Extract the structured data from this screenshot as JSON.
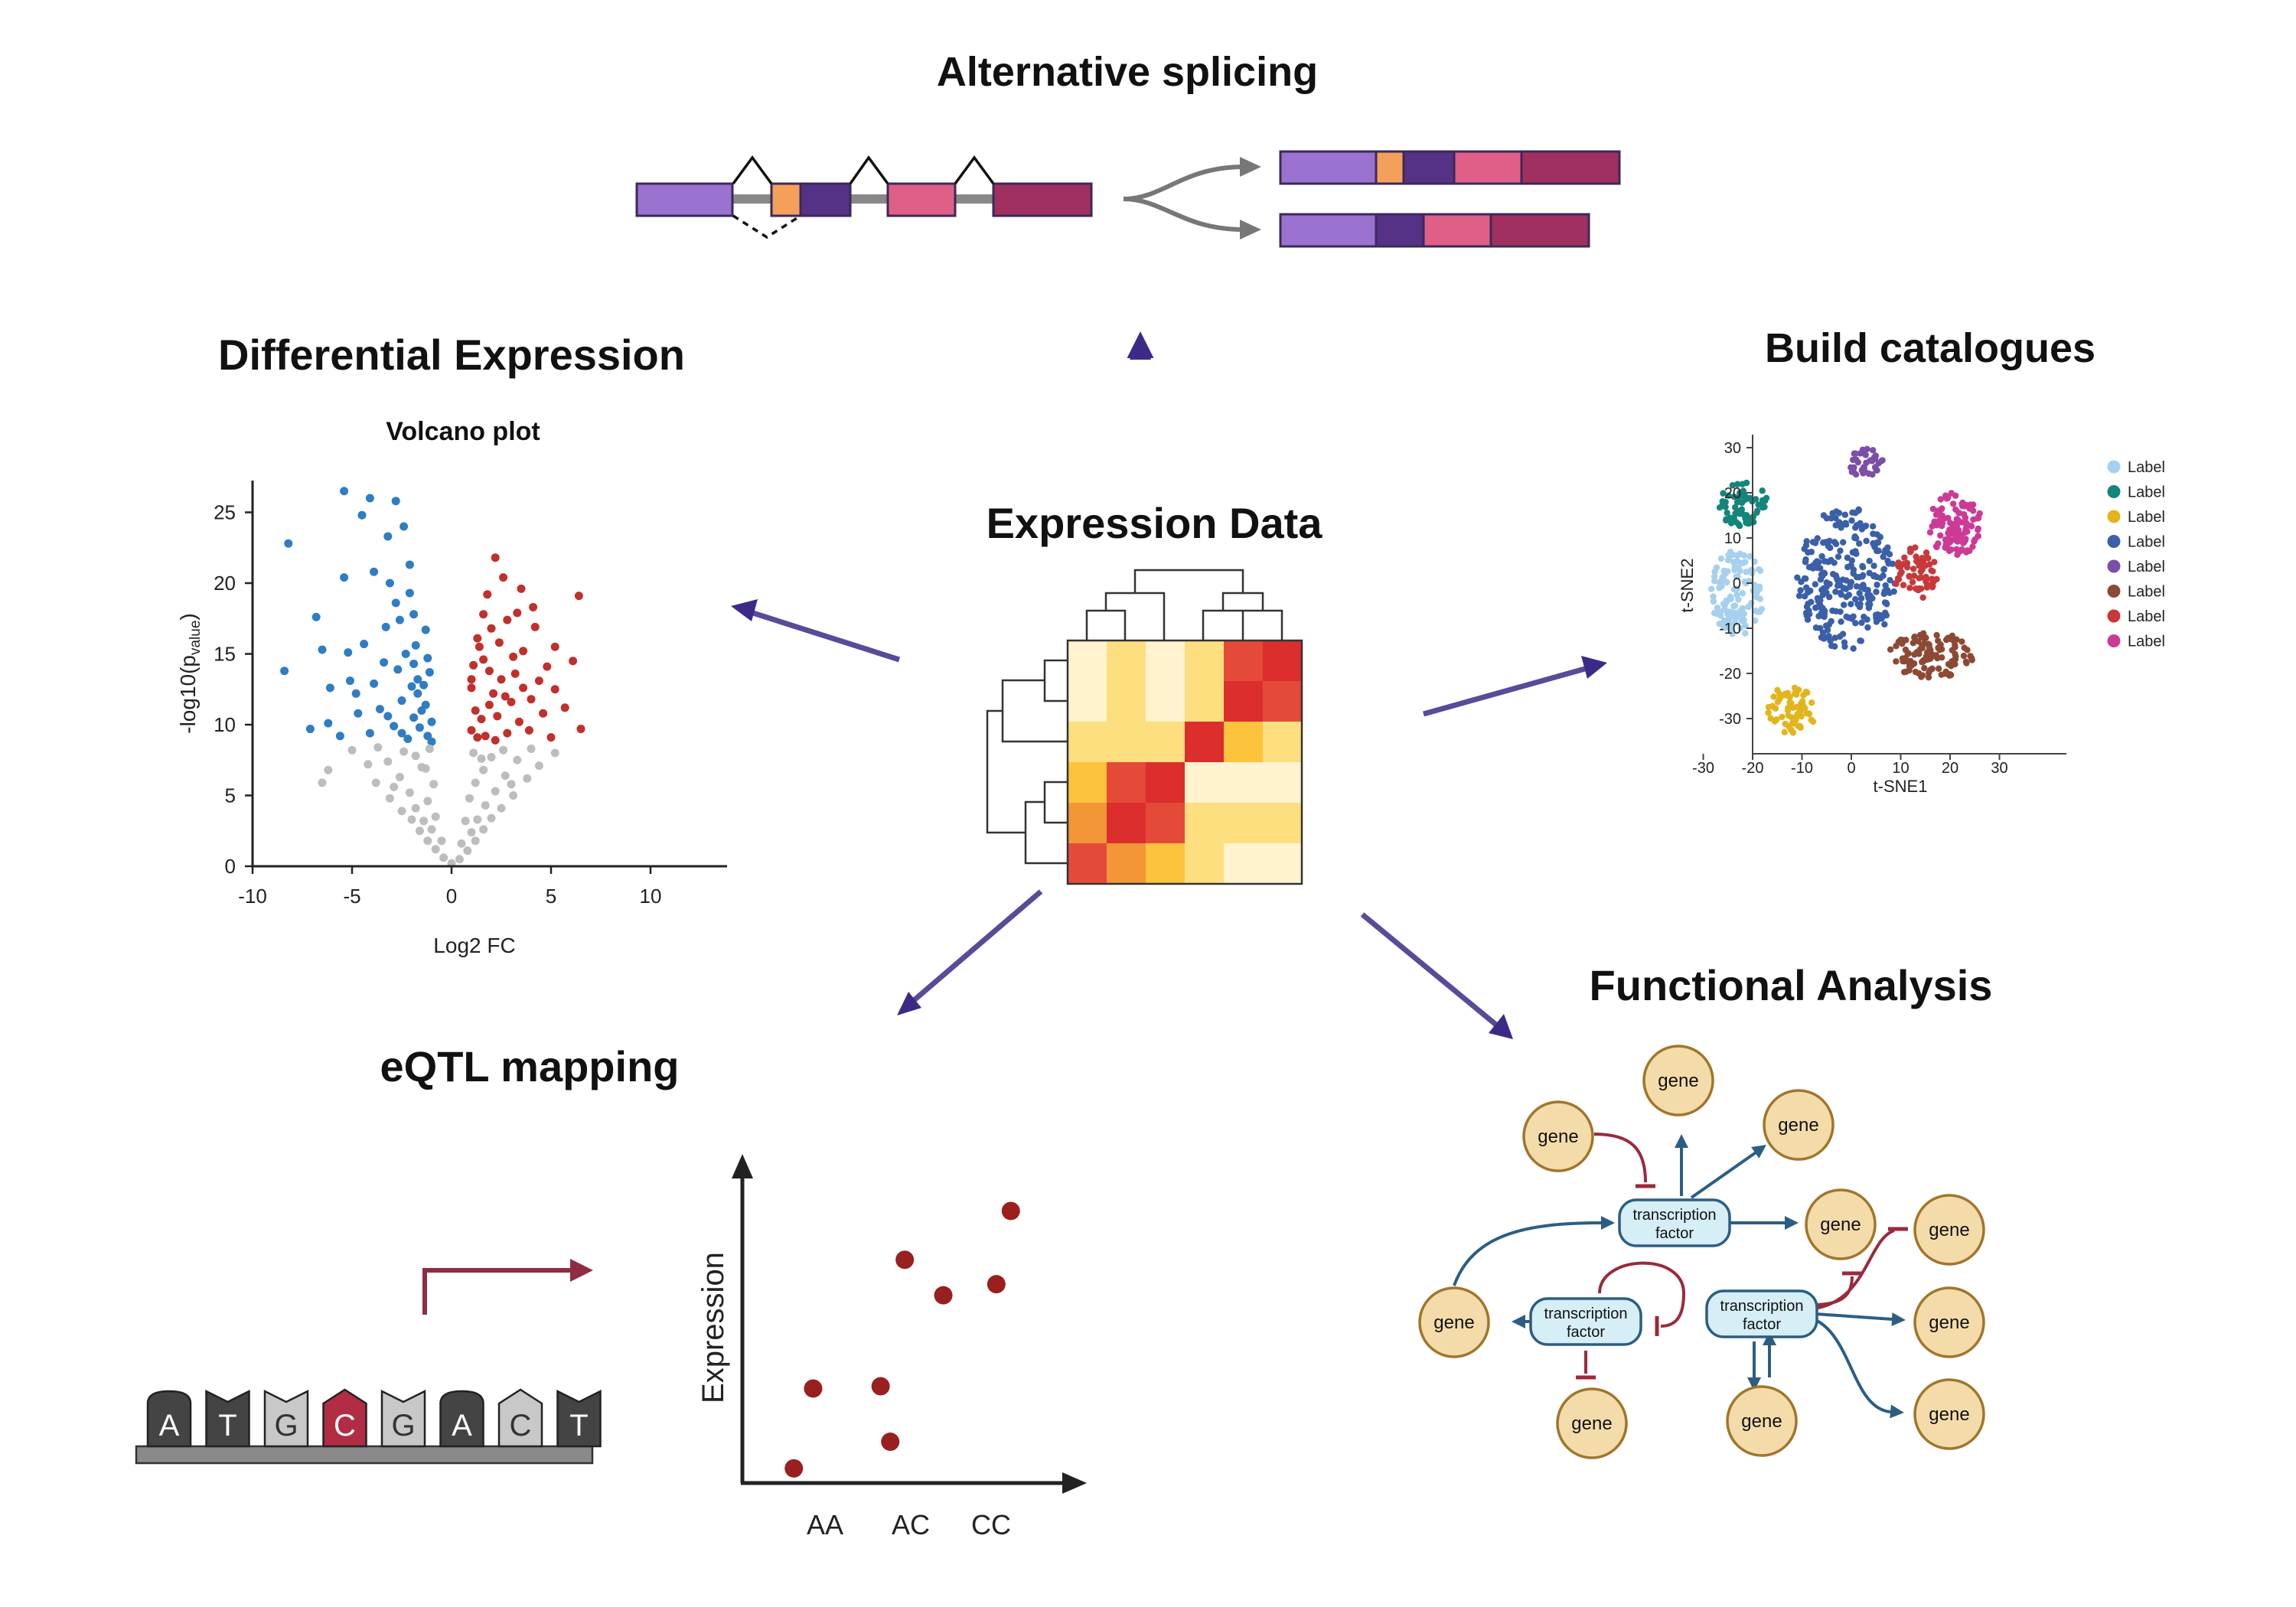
{
  "titles": {
    "alternative_splicing": "Alternative splicing",
    "differential_expression": "Differential Expression",
    "build_catalogues": "Build catalogues",
    "expression_data": "Expression Data",
    "functional_analysis": "Functional Analysis",
    "eqtl_mapping": "eQTL mapping"
  },
  "splicing": {
    "colors": {
      "purple_light": "#9b72cf",
      "orange": "#f4a05a",
      "purple_dark": "#553286",
      "pink": "#e05f86",
      "maroon": "#a03060",
      "intron": "#888888",
      "arrow": "#777777"
    }
  },
  "arrows": {
    "color": "#3d2a87"
  },
  "heatmap": {
    "colors": [
      "#fff3d0",
      "#fedf7f",
      "#fcc33c",
      "#f29637",
      "#e54a39",
      "#dc2e2c"
    ],
    "cells": [
      [
        0,
        1,
        0,
        1,
        4,
        5
      ],
      [
        0,
        1,
        0,
        1,
        5,
        4
      ],
      [
        1,
        1,
        1,
        5,
        2,
        1
      ],
      [
        2,
        4,
        5,
        0,
        0,
        0
      ],
      [
        3,
        5,
        4,
        1,
        1,
        1
      ],
      [
        4,
        3,
        2,
        1,
        0,
        0
      ]
    ]
  },
  "volcano": {
    "title": "Volcano plot",
    "xlabel": "Log2 FC",
    "ylabel_main": "-log10(p",
    "ylabel_sub": "value",
    "ylabel_close": ")",
    "x_ticks": [
      "-10",
      "-5",
      "0",
      "5",
      "10"
    ],
    "y_ticks": [
      "0",
      "5",
      "10",
      "15",
      "20",
      "25"
    ],
    "chart_data": {
      "type": "scatter",
      "xlim": [
        -10,
        14
      ],
      "ylim": [
        0,
        27
      ],
      "threshold_y": 8.5,
      "series": [
        {
          "color": "#2f7dc3",
          "points": [
            [
              -8.2,
              22.8
            ],
            [
              -8.4,
              13.8
            ],
            [
              -5.4,
              26.5
            ],
            [
              -4.1,
              26
            ],
            [
              -2.8,
              25.8
            ],
            [
              -4.5,
              24.8
            ],
            [
              -3.2,
              23.3
            ],
            [
              -2.4,
              24
            ],
            [
              -5.4,
              20.4
            ],
            [
              -3.9,
              20.8
            ],
            [
              -2.1,
              21.3
            ],
            [
              -6.8,
              17.6
            ],
            [
              -6.5,
              15.3
            ],
            [
              -5.2,
              15.1
            ],
            [
              -4.4,
              15.7
            ],
            [
              -3.3,
              16.9
            ],
            [
              -2.8,
              18.6
            ],
            [
              -2.1,
              19.3
            ],
            [
              -6.1,
              12.6
            ],
            [
              -5.1,
              13.1
            ],
            [
              -3.9,
              12.9
            ],
            [
              -2.7,
              13.9
            ],
            [
              -1.9,
              14.3
            ],
            [
              -7.1,
              9.7
            ],
            [
              -6.2,
              10.1
            ],
            [
              -4.7,
              10.8
            ],
            [
              -3.6,
              11.1
            ],
            [
              -2.5,
              11.7
            ],
            [
              -1.7,
              12.2
            ],
            [
              -5.6,
              9.2
            ],
            [
              -4.1,
              9.4
            ],
            [
              -2.9,
              9.9
            ],
            [
              -1.9,
              10.5
            ],
            [
              -1.3,
              11.4
            ],
            [
              -1.2,
              9.2
            ],
            [
              -1.6,
              9.8
            ],
            [
              -2.2,
              9.0
            ],
            [
              -1.0,
              10.2
            ],
            [
              -1.4,
              12.8
            ],
            [
              -1.1,
              13.7
            ],
            [
              -1.8,
              15.6
            ],
            [
              -1.3,
              16.7
            ],
            [
              -2.6,
              17.4
            ],
            [
              -3.1,
              20.0
            ],
            [
              -1.9,
              17.8
            ],
            [
              -2.3,
              15.0
            ],
            [
              -3.4,
              14.4
            ],
            [
              -4.8,
              12.2
            ],
            [
              -2.5,
              9.4
            ],
            [
              -3.2,
              10.6
            ],
            [
              -1.5,
              11.0
            ],
            [
              -2.0,
              12.7
            ],
            [
              -1.0,
              8.8
            ],
            [
              -1.7,
              13.2
            ],
            [
              -1.2,
              14.7
            ]
          ]
        },
        {
          "color": "#c0302c",
          "points": [
            [
              2.2,
              21.8
            ],
            [
              1.8,
              19.2
            ],
            [
              2.6,
              20.4
            ],
            [
              3.5,
              19.6
            ],
            [
              6.4,
              19.1
            ],
            [
              1.6,
              17.8
            ],
            [
              2.8,
              17.4
            ],
            [
              4.2,
              16.9
            ],
            [
              1.3,
              16.1
            ],
            [
              2.4,
              15.8
            ],
            [
              3.6,
              15.2
            ],
            [
              5.2,
              15.5
            ],
            [
              1.1,
              14.2
            ],
            [
              1.9,
              13.8
            ],
            [
              3.2,
              13.6
            ],
            [
              4.4,
              13.1
            ],
            [
              6.1,
              14.5
            ],
            [
              1.0,
              12.6
            ],
            [
              2.1,
              12.2
            ],
            [
              3.0,
              11.6
            ],
            [
              4.0,
              11.8
            ],
            [
              5.2,
              12.5
            ],
            [
              1.2,
              11.0
            ],
            [
              2.3,
              10.6
            ],
            [
              3.4,
              10.2
            ],
            [
              4.6,
              10.8
            ],
            [
              5.7,
              11.2
            ],
            [
              1.0,
              9.6
            ],
            [
              1.7,
              9.2
            ],
            [
              2.8,
              9.4
            ],
            [
              3.9,
              9.6
            ],
            [
              5.0,
              9.1
            ],
            [
              6.5,
              9.7
            ],
            [
              1.5,
              10.4
            ],
            [
              2.5,
              13.2
            ],
            [
              3.1,
              14.8
            ],
            [
              1.4,
              15.5
            ],
            [
              2.0,
              16.8
            ],
            [
              3.3,
              17.9
            ],
            [
              4.1,
              18.3
            ],
            [
              1.9,
              11.4
            ],
            [
              2.7,
              12.0
            ],
            [
              1.3,
              9.1
            ],
            [
              2.2,
              8.9
            ],
            [
              3.6,
              12.6
            ],
            [
              4.8,
              14.1
            ],
            [
              1.0,
              13.2
            ],
            [
              1.6,
              14.6
            ]
          ]
        },
        {
          "color": "#bdbdbd",
          "points": [
            [
              -6.2,
              6.8
            ],
            [
              -6.5,
              5.9
            ],
            [
              -5.0,
              8.2
            ],
            [
              -4.2,
              7.2
            ],
            [
              -3.8,
              5.9
            ],
            [
              -3.1,
              4.8
            ],
            [
              -2.5,
              3.9
            ],
            [
              -2.0,
              3.3
            ],
            [
              -1.6,
              2.5
            ],
            [
              -1.2,
              1.8
            ],
            [
              -0.8,
              1.2
            ],
            [
              -0.4,
              0.6
            ],
            [
              0,
              0.2
            ],
            [
              0.4,
              0.5
            ],
            [
              0.8,
              1.1
            ],
            [
              1.2,
              1.8
            ],
            [
              1.6,
              2.6
            ],
            [
              2.0,
              3.4
            ],
            [
              2.5,
              4.1
            ],
            [
              3.1,
              5.0
            ],
            [
              3.8,
              6.2
            ],
            [
              4.4,
              7.1
            ],
            [
              5.2,
              8.0
            ],
            [
              -3.2,
              7.4
            ],
            [
              -2.6,
              6.3
            ],
            [
              -2.1,
              5.2
            ],
            [
              -1.8,
              4.1
            ],
            [
              -1.4,
              3.2
            ],
            [
              -1.0,
              2.6
            ],
            [
              1.0,
              2.4
            ],
            [
              1.3,
              3.3
            ],
            [
              1.7,
              4.3
            ],
            [
              2.2,
              5.3
            ],
            [
              2.7,
              6.4
            ],
            [
              3.3,
              7.5
            ],
            [
              -1.8,
              7.8
            ],
            [
              -1.3,
              6.9
            ],
            [
              -0.9,
              5.8
            ],
            [
              -1.2,
              4.6
            ],
            [
              0.9,
              4.8
            ],
            [
              1.2,
              5.9
            ],
            [
              1.6,
              6.8
            ],
            [
              2.0,
              7.7
            ],
            [
              -2.4,
              8.1
            ],
            [
              -0.8,
              3.5
            ],
            [
              0.7,
              3.2
            ],
            [
              -0.5,
              1.8
            ],
            [
              0.5,
              1.6
            ],
            [
              -1.5,
              7.0
            ],
            [
              1.5,
              7.6
            ],
            [
              2.6,
              8.2
            ],
            [
              -3.7,
              8.4
            ],
            [
              4.0,
              8.3
            ],
            [
              -2.9,
              5.6
            ],
            [
              3.0,
              5.8
            ],
            [
              -1.1,
              8.3
            ],
            [
              1.1,
              8.0
            ]
          ]
        }
      ]
    }
  },
  "tsne": {
    "xlabel": "t-SNE1",
    "ylabel": "t-SNE2",
    "x_ticks": [
      "-30",
      "-20",
      "-10",
      "0",
      "10",
      "20",
      "30"
    ],
    "y_ticks": [
      "30",
      "20",
      "10",
      "0",
      "-10",
      "-20",
      "-30"
    ],
    "legend": [
      {
        "label": "Label",
        "color": "#a6d1ee"
      },
      {
        "label": "Label",
        "color": "#14857a"
      },
      {
        "label": "Label",
        "color": "#e2b51c"
      },
      {
        "label": "Label",
        "color": "#3b5fa8"
      },
      {
        "label": "Label",
        "color": "#7a4fa6"
      },
      {
        "label": "Label",
        "color": "#8c4a34"
      },
      {
        "label": "Label",
        "color": "#c8393b"
      },
      {
        "label": "Label",
        "color": "#cc3a96"
      }
    ],
    "chart_data": {
      "type": "scatter",
      "xlim": [
        -31,
        32
      ],
      "ylim": [
        -37,
        31
      ],
      "clusters": [
        {
          "color": "#a6d1ee",
          "cx": -23,
          "cy": -2,
          "rx": 5.5,
          "ry": 9.5,
          "n": 120
        },
        {
          "color": "#14857a",
          "cx": -22,
          "cy": 17.5,
          "rx": 5,
          "ry": 5,
          "n": 60
        },
        {
          "color": "#e2b51c",
          "cx": -12,
          "cy": -28,
          "rx": 5,
          "ry": 5.5,
          "n": 60
        },
        {
          "color": "#3b5fa8",
          "cx": -1,
          "cy": 1,
          "rx": 10,
          "ry": 16,
          "n": 260
        },
        {
          "color": "#7a4fa6",
          "cx": 3,
          "cy": 26.5,
          "rx": 3.5,
          "ry": 3.5,
          "n": 35
        },
        {
          "color": "#c8393b",
          "cx": 13,
          "cy": 2,
          "rx": 4.5,
          "ry": 6,
          "n": 60
        },
        {
          "color": "#cc3a96",
          "cx": 21,
          "cy": 13,
          "rx": 5.5,
          "ry": 7,
          "n": 110
        },
        {
          "color": "#8c4a34",
          "cx": 16,
          "cy": -16,
          "rx": 9,
          "ry": 5,
          "n": 110
        }
      ]
    }
  },
  "eqtl": {
    "bases": [
      {
        "letter": "A",
        "color": "#444444",
        "shape": "round"
      },
      {
        "letter": "T",
        "color": "#444444",
        "shape": "notch"
      },
      {
        "letter": "G",
        "color": "#c8c8c8",
        "shape": "notch"
      },
      {
        "letter": "C",
        "color": "#b22c44",
        "shape": "point"
      },
      {
        "letter": "G",
        "color": "#c8c8c8",
        "shape": "notch"
      },
      {
        "letter": "A",
        "color": "#444444",
        "shape": "round"
      },
      {
        "letter": "C",
        "color": "#c8c8c8",
        "shape": "point"
      },
      {
        "letter": "T",
        "color": "#444444",
        "shape": "notch"
      }
    ],
    "ylabel": "Expression",
    "categories": [
      "AA",
      "AC",
      "CC"
    ],
    "point_color": "#9a1f1f",
    "arrow_color": "#8e2c44",
    "chart_data": {
      "type": "scatter",
      "categories": [
        "AA",
        "AC",
        "CC"
      ],
      "points": [
        [
          0.75,
          0.33
        ],
        [
          1.15,
          2.13
        ],
        [
          2.55,
          2.18
        ],
        [
          2.75,
          0.93
        ],
        [
          3.05,
          5.03
        ],
        [
          3.85,
          4.23
        ],
        [
          4.95,
          4.48
        ],
        [
          5.25,
          6.13
        ]
      ],
      "ylim": [
        0,
        8.5
      ]
    }
  },
  "functional": {
    "gene_label": "gene",
    "tf_label_1": "transcription",
    "tf_label_2": "factor",
    "colors": {
      "gene_fill": "#f4dcaa",
      "gene_stroke": "#a0762c",
      "tf_fill": "#d6eef6",
      "tf_stroke": "#2c5e84",
      "activate": "#2c5e84",
      "inhibit": "#9a2a3c"
    }
  }
}
